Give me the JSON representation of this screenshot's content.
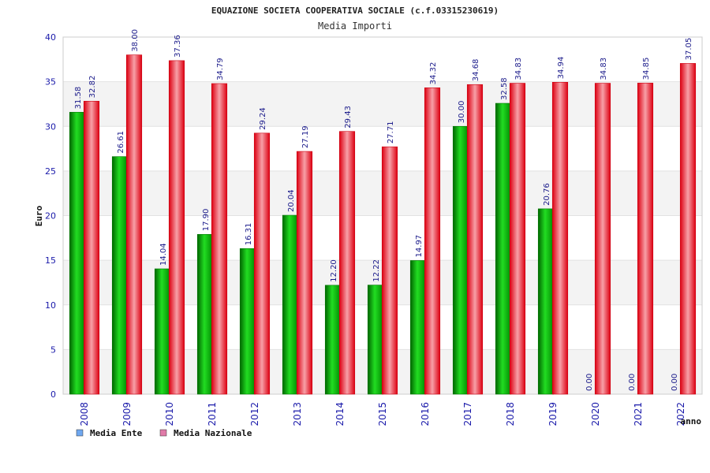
{
  "chart_data": {
    "type": "bar",
    "title": "EQUAZIONE SOCIETA COOPERATIVA SOCIALE (c.f.03315230619)",
    "subtitle": "Media Importi",
    "xlabel": "anno",
    "ylabel": "Euro",
    "ylim": [
      0,
      40
    ],
    "yticks": [
      0,
      5,
      10,
      15,
      20,
      25,
      30,
      35,
      40
    ],
    "grid": true,
    "legend_position": "bottom-left",
    "categories": [
      "2008",
      "2009",
      "2010",
      "2011",
      "2012",
      "2013",
      "2014",
      "2015",
      "2016",
      "2017",
      "2018",
      "2019",
      "2020",
      "2021",
      "2022"
    ],
    "series": [
      {
        "name": "Media Ente",
        "color": "#00bb00",
        "legend_color": "#6fa8f0",
        "values": [
          31.58,
          26.61,
          14.04,
          17.9,
          16.31,
          20.04,
          12.2,
          12.22,
          14.97,
          30.0,
          32.58,
          20.76,
          0.0,
          0.0,
          0.0
        ],
        "labels": [
          "31.58",
          "26.61",
          "14.04",
          "17.90",
          "16.31",
          "20.04",
          "12.20",
          "12.22",
          "14.97",
          "30.00",
          "32.58",
          "20.76",
          "0.00",
          "0.00",
          "0.00"
        ]
      },
      {
        "name": "Media Nazionale",
        "color": "#ee2233",
        "legend_color": "#e07aa8",
        "values": [
          32.82,
          38.0,
          37.36,
          34.79,
          29.24,
          27.19,
          29.43,
          27.71,
          34.32,
          34.68,
          34.83,
          34.94,
          34.83,
          34.85,
          37.05
        ],
        "labels": [
          "32.82",
          "38.00",
          "37.36",
          "34.79",
          "29.24",
          "27.19",
          "29.43",
          "27.71",
          "34.32",
          "34.68",
          "34.83",
          "34.94",
          "34.83",
          "34.85",
          "37.05"
        ]
      }
    ]
  }
}
